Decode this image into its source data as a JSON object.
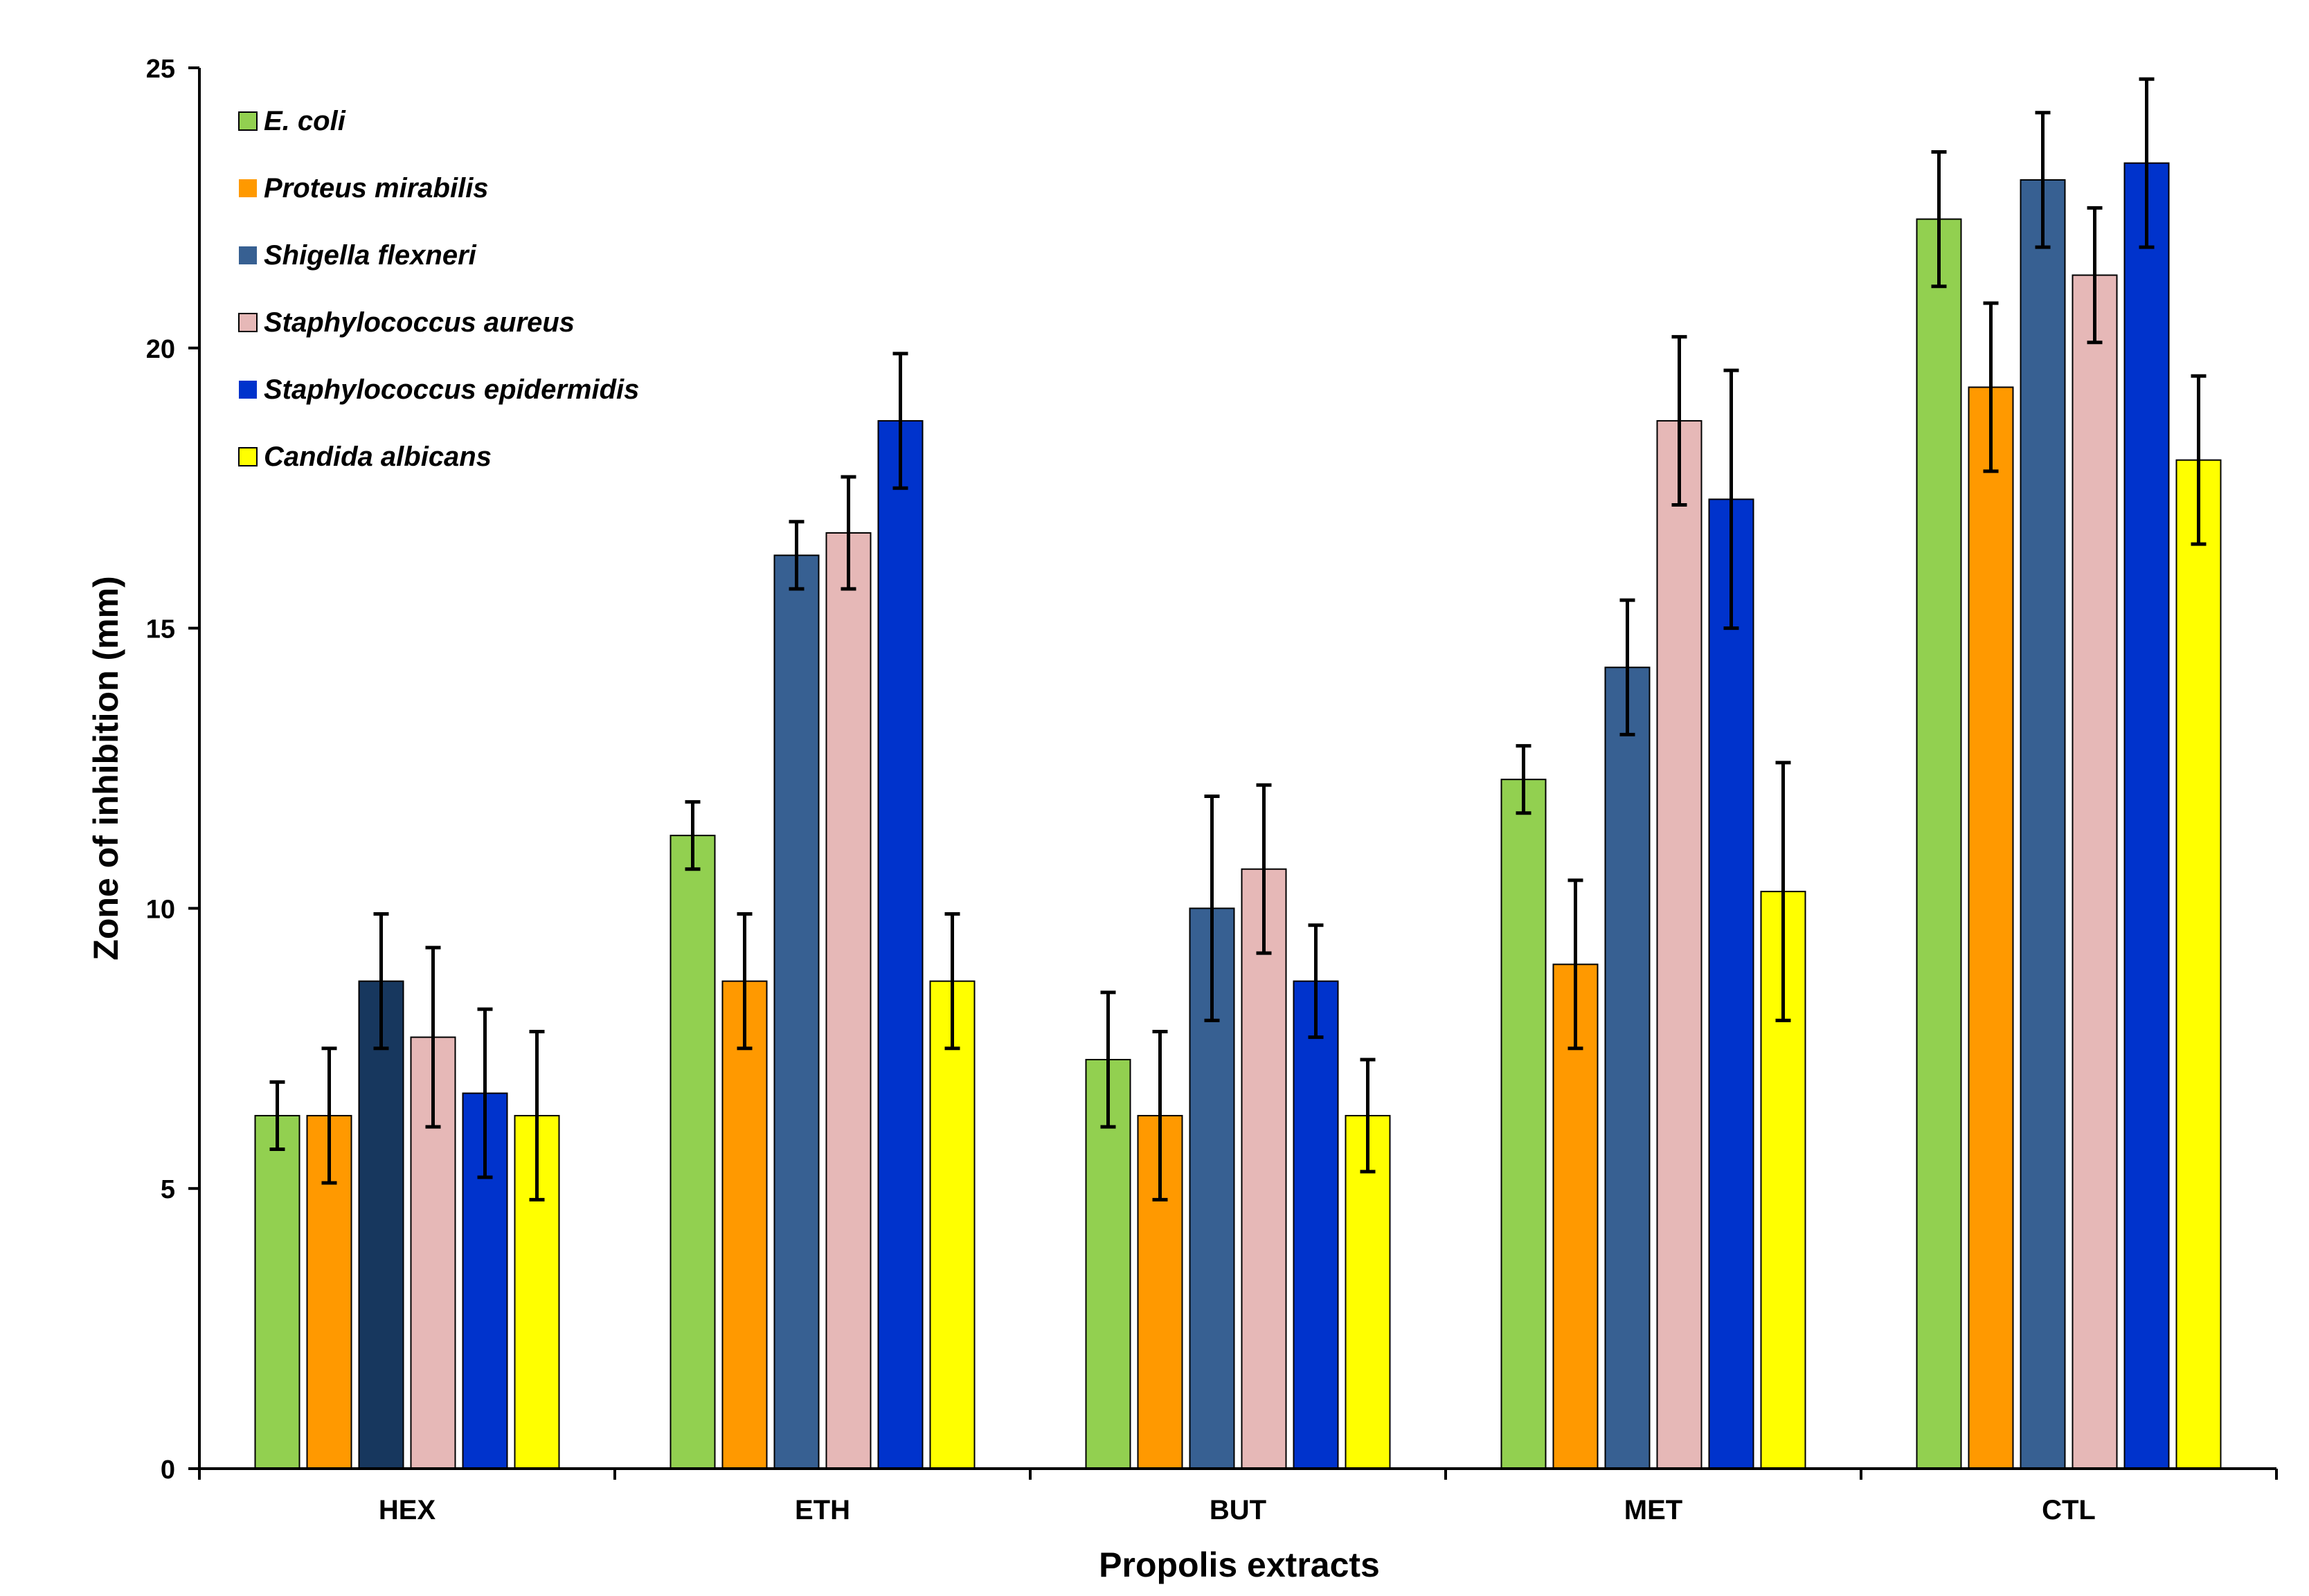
{
  "chart_data": {
    "type": "bar",
    "title": "",
    "xlabel": "Propolis extracts",
    "ylabel": "Zone of inhibition (mm)",
    "ylim": [
      0,
      25
    ],
    "yticks": [
      "0",
      "5",
      "10",
      "15",
      "20",
      "25"
    ],
    "ytick_values": [
      0,
      5,
      10,
      15,
      20,
      25
    ],
    "grid": false,
    "legend_position": "top-left",
    "categories": [
      "HEX",
      "ETH",
      "BUT",
      "MET",
      "CTL"
    ],
    "series": [
      {
        "name": "E. coli",
        "color": "#92D050",
        "values": [
          6.3,
          11.3,
          7.3,
          12.3,
          22.3
        ],
        "errors": [
          0.6,
          0.6,
          1.2,
          0.6,
          1.2
        ]
      },
      {
        "name": "Proteus mirabilis",
        "color": "#FF9900",
        "values": [
          6.3,
          8.7,
          6.3,
          9.0,
          19.3
        ],
        "errors": [
          1.2,
          1.2,
          1.5,
          1.5,
          1.5
        ]
      },
      {
        "name": "Shigella flexneri",
        "color": "#376092",
        "values": [
          8.7,
          16.3,
          10.0,
          14.3,
          23.0
        ],
        "errors": [
          1.2,
          0.6,
          2.0,
          1.2,
          1.2
        ]
      },
      {
        "name": "Staphylococcus aureus",
        "color": "#E6B8B7",
        "values": [
          7.7,
          16.7,
          10.7,
          18.7,
          21.3
        ],
        "errors": [
          1.6,
          1.0,
          1.5,
          1.5,
          1.2
        ]
      },
      {
        "name": "Staphylococcus epidermidis",
        "color": "#0033CC",
        "values": [
          6.7,
          18.7,
          8.7,
          17.3,
          23.3
        ],
        "errors": [
          1.5,
          1.2,
          1.0,
          2.3,
          1.5
        ]
      },
      {
        "name": "Candida albicans",
        "color": "#FFFF00",
        "values": [
          6.3,
          8.7,
          6.3,
          10.3,
          18.0
        ],
        "errors": [
          1.5,
          1.2,
          1.0,
          2.3,
          1.5
        ]
      }
    ],
    "highlight": {
      "category_index": 0,
      "series_index": 2,
      "color": "#17375E"
    }
  }
}
